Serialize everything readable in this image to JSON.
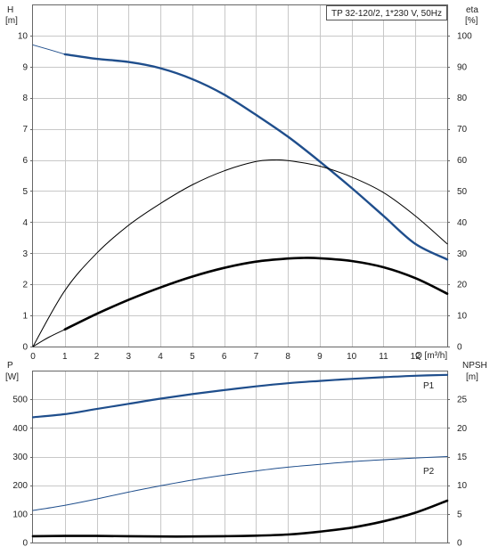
{
  "title": "TP 32-120/2, 1*230 V, 50Hz",
  "colors": {
    "pump_curve": "#1f4e8c",
    "black_curve": "#000000",
    "power_curve": "#1f4e8c",
    "grid": "#c8c8c8"
  },
  "chart_data": [
    {
      "type": "line",
      "x_label": "Q [m³/h]",
      "xlim": [
        0,
        13
      ],
      "x_ticks": [
        "0",
        "1",
        "2",
        "3",
        "4",
        "5",
        "6",
        "7",
        "8",
        "9",
        "10",
        "11",
        "12"
      ],
      "y_left_label": [
        "H",
        "[m]"
      ],
      "ylim_left": [
        0,
        11
      ],
      "y_left_ticks": [
        "0",
        "1",
        "2",
        "3",
        "4",
        "5",
        "6",
        "7",
        "8",
        "9",
        "10"
      ],
      "y_right_label": [
        "eta",
        "[%]"
      ],
      "ylim_right": [
        0,
        110
      ],
      "y_right_ticks": [
        "0",
        "10",
        "20",
        "30",
        "40",
        "50",
        "60",
        "70",
        "80",
        "90",
        "100"
      ],
      "grid": true,
      "series": [
        {
          "axis": "left",
          "style": "pump-head-thin",
          "x": [
            0,
            0.5,
            1
          ],
          "y": [
            9.7,
            9.55,
            9.4
          ]
        },
        {
          "axis": "left",
          "style": "pump-head",
          "x": [
            1,
            2,
            3,
            4,
            5,
            6,
            7,
            8,
            9,
            10,
            11,
            12,
            13
          ],
          "y": [
            9.4,
            9.25,
            9.15,
            8.95,
            8.6,
            8.1,
            7.45,
            6.75,
            5.95,
            5.1,
            4.2,
            3.3,
            2.8
          ]
        },
        {
          "axis": "right",
          "style": "efficiency",
          "x": [
            0,
            1,
            2,
            3,
            4,
            5,
            6,
            7,
            7.5,
            8,
            9,
            10,
            11,
            12,
            13
          ],
          "y": [
            0,
            18,
            30,
            39,
            46,
            52,
            56.5,
            59.5,
            60,
            59.8,
            58,
            54.5,
            49.5,
            42,
            33
          ]
        },
        {
          "axis": "right",
          "style": "thin",
          "x": [
            0,
            0.5,
            1
          ],
          "y": [
            0,
            3,
            5.5
          ]
        },
        {
          "axis": "right",
          "style": "npsh-req",
          "x": [
            1,
            2,
            3,
            4,
            5,
            6,
            7,
            8,
            8.5,
            9,
            10,
            11,
            12,
            13
          ],
          "y": [
            5.5,
            10.5,
            15,
            19,
            22.5,
            25.3,
            27.3,
            28.3,
            28.5,
            28.4,
            27.5,
            25.5,
            22,
            17
          ]
        }
      ]
    },
    {
      "type": "line",
      "xlim": [
        0,
        13
      ],
      "y_left_label": [
        "P",
        "[W]"
      ],
      "ylim_left": [
        0,
        600
      ],
      "y_left_ticks": [
        "0",
        "100",
        "200",
        "300",
        "400",
        "500"
      ],
      "y_right_label": [
        "NPSH",
        "[m]"
      ],
      "ylim_right": [
        0,
        30
      ],
      "y_right_ticks": [
        "0",
        "5",
        "10",
        "15",
        "20",
        "25"
      ],
      "grid": true,
      "series": [
        {
          "name": "P1",
          "axis": "left",
          "style": "power",
          "x": [
            0,
            1,
            2,
            3,
            4,
            5,
            6,
            7,
            8,
            9,
            10,
            11,
            12,
            13
          ],
          "y": [
            437,
            448,
            466,
            484,
            502,
            518,
            532,
            545,
            556,
            564,
            571,
            577,
            582,
            585
          ]
        },
        {
          "name": "P2",
          "axis": "left",
          "style": "power-thin",
          "x": [
            0,
            1,
            2,
            3,
            4,
            5,
            6,
            7,
            8,
            9,
            10,
            11,
            12,
            13
          ],
          "y": [
            112,
            130,
            152,
            176,
            198,
            218,
            235,
            250,
            263,
            273,
            282,
            289,
            295,
            300
          ]
        },
        {
          "axis": "right",
          "style": "npsh",
          "x": [
            0,
            1,
            2,
            3,
            4,
            5,
            6,
            7,
            8,
            9,
            10,
            11,
            12,
            13
          ],
          "y": [
            1.1,
            1.15,
            1.15,
            1.1,
            1.05,
            1.05,
            1.1,
            1.2,
            1.4,
            1.9,
            2.6,
            3.7,
            5.2,
            7.3
          ]
        }
      ]
    }
  ]
}
